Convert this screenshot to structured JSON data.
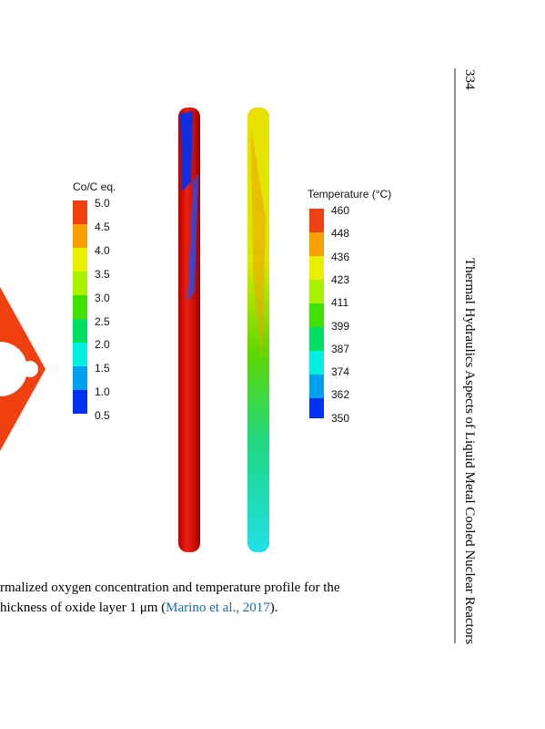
{
  "header": {
    "page_number": "334",
    "running_title": "Thermal Hydraulics Aspects of Liquid Metal Cooled Nuclear Reactors"
  },
  "figure": {
    "legend_left": {
      "title": "Co/C eq.",
      "ticks": [
        "5.0",
        "4.5",
        "4.0",
        "3.5",
        "3.0",
        "2.5",
        "2.0",
        "1.5",
        "1.0",
        "0.5"
      ]
    },
    "legend_right": {
      "title": "Temperature (°C)",
      "ticks": [
        "460",
        "448",
        "436",
        "423",
        "411",
        "399",
        "387",
        "374",
        "362",
        "350"
      ]
    }
  },
  "caption": {
    "line1": "rmalized oxygen concentration and temperature profile for the",
    "line2_start": "hickness of oxide layer 1 μm (",
    "citation": "Marino et al., 2017",
    "line2_end": ")."
  }
}
